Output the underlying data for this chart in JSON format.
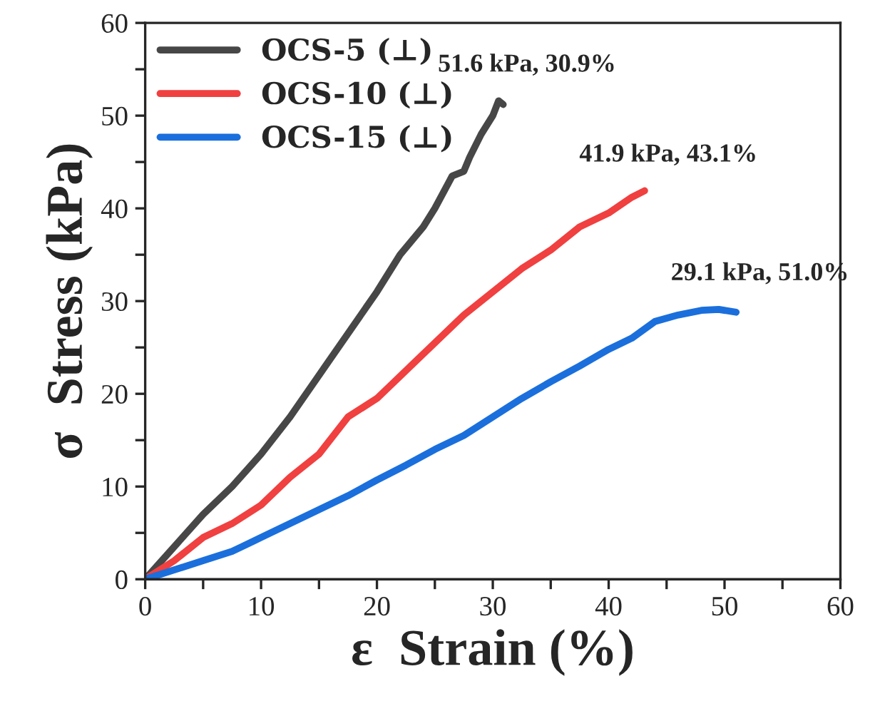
{
  "chart_data": {
    "type": "line",
    "xlabel": "ε  Strain (%)",
    "ylabel": "σ  Stress (kPa)",
    "xlim": [
      0,
      60
    ],
    "ylim": [
      0,
      60
    ],
    "xticks": [
      0,
      {
        "value": 5,
        "label": null
      },
      10,
      {
        "value": 15,
        "label": null
      },
      20,
      {
        "value": 25,
        "label": null
      },
      30,
      {
        "value": 35,
        "label": null
      },
      40,
      {
        "value": 45,
        "label": null
      },
      50,
      {
        "value": 55,
        "label": null
      },
      60
    ],
    "yticks": [
      0,
      {
        "value": 5,
        "label": null
      },
      10,
      {
        "value": 15,
        "label": null
      },
      20,
      {
        "value": 25,
        "label": null
      },
      30,
      {
        "value": 35,
        "label": null
      },
      40,
      {
        "value": 45,
        "label": null
      },
      50,
      {
        "value": 55,
        "label": null
      },
      60
    ],
    "grid": false,
    "legend": "top left",
    "line_style": "solid",
    "marker": "none",
    "series": [
      {
        "name": "OCS-5 (⊥)",
        "color": "#474747",
        "x": [
          0,
          2.5,
          5,
          7.5,
          10,
          12.5,
          15,
          17.5,
          20,
          22,
          24,
          25,
          26.5,
          27.5,
          28,
          29,
          30,
          30.5,
          30.9
        ],
        "values": [
          0,
          3.5,
          7,
          10,
          13.5,
          17.5,
          22,
          26.5,
          31,
          35,
          38,
          40,
          43.5,
          44,
          45.5,
          48,
          50,
          51.6,
          51.2
        ]
      },
      {
        "name": "OCS-10 (⊥)",
        "color": "#f04040",
        "x": [
          0,
          2.5,
          5,
          7.5,
          10,
          12.5,
          15,
          17.5,
          20,
          22.5,
          25,
          27.5,
          30,
          32.5,
          35,
          37.5,
          40,
          42,
          43.1
        ],
        "values": [
          0,
          2,
          4.5,
          6,
          8,
          11,
          13.5,
          17.5,
          19.5,
          22.5,
          25.5,
          28.5,
          31,
          33.5,
          35.5,
          38,
          39.5,
          41.2,
          41.9
        ]
      },
      {
        "name": "OCS-15 (⊥)",
        "color": "#1a6fdc",
        "x": [
          0,
          2.5,
          5,
          7.5,
          10,
          12.5,
          15,
          17.5,
          20,
          22.5,
          25,
          27.5,
          30,
          32.5,
          35,
          37.5,
          40,
          42,
          44,
          46,
          48,
          49.5,
          51
        ],
        "values": [
          0,
          1,
          2,
          3,
          4.5,
          6,
          7.5,
          9,
          10.7,
          12.3,
          14,
          15.5,
          17.5,
          19.5,
          21.3,
          23,
          24.8,
          26,
          27.8,
          28.5,
          29,
          29.1,
          28.8
        ]
      }
    ],
    "annotations": [
      {
        "text": "51.6 kPa, 30.9%",
        "x": 30.9,
        "y": 51.6
      },
      {
        "text": "41.9 kPa, 43.1%",
        "x": 43.1,
        "y": 41.9
      },
      {
        "text": "29.1 kPa, 51.0%",
        "x": 51.0,
        "y": 29.1
      }
    ]
  }
}
